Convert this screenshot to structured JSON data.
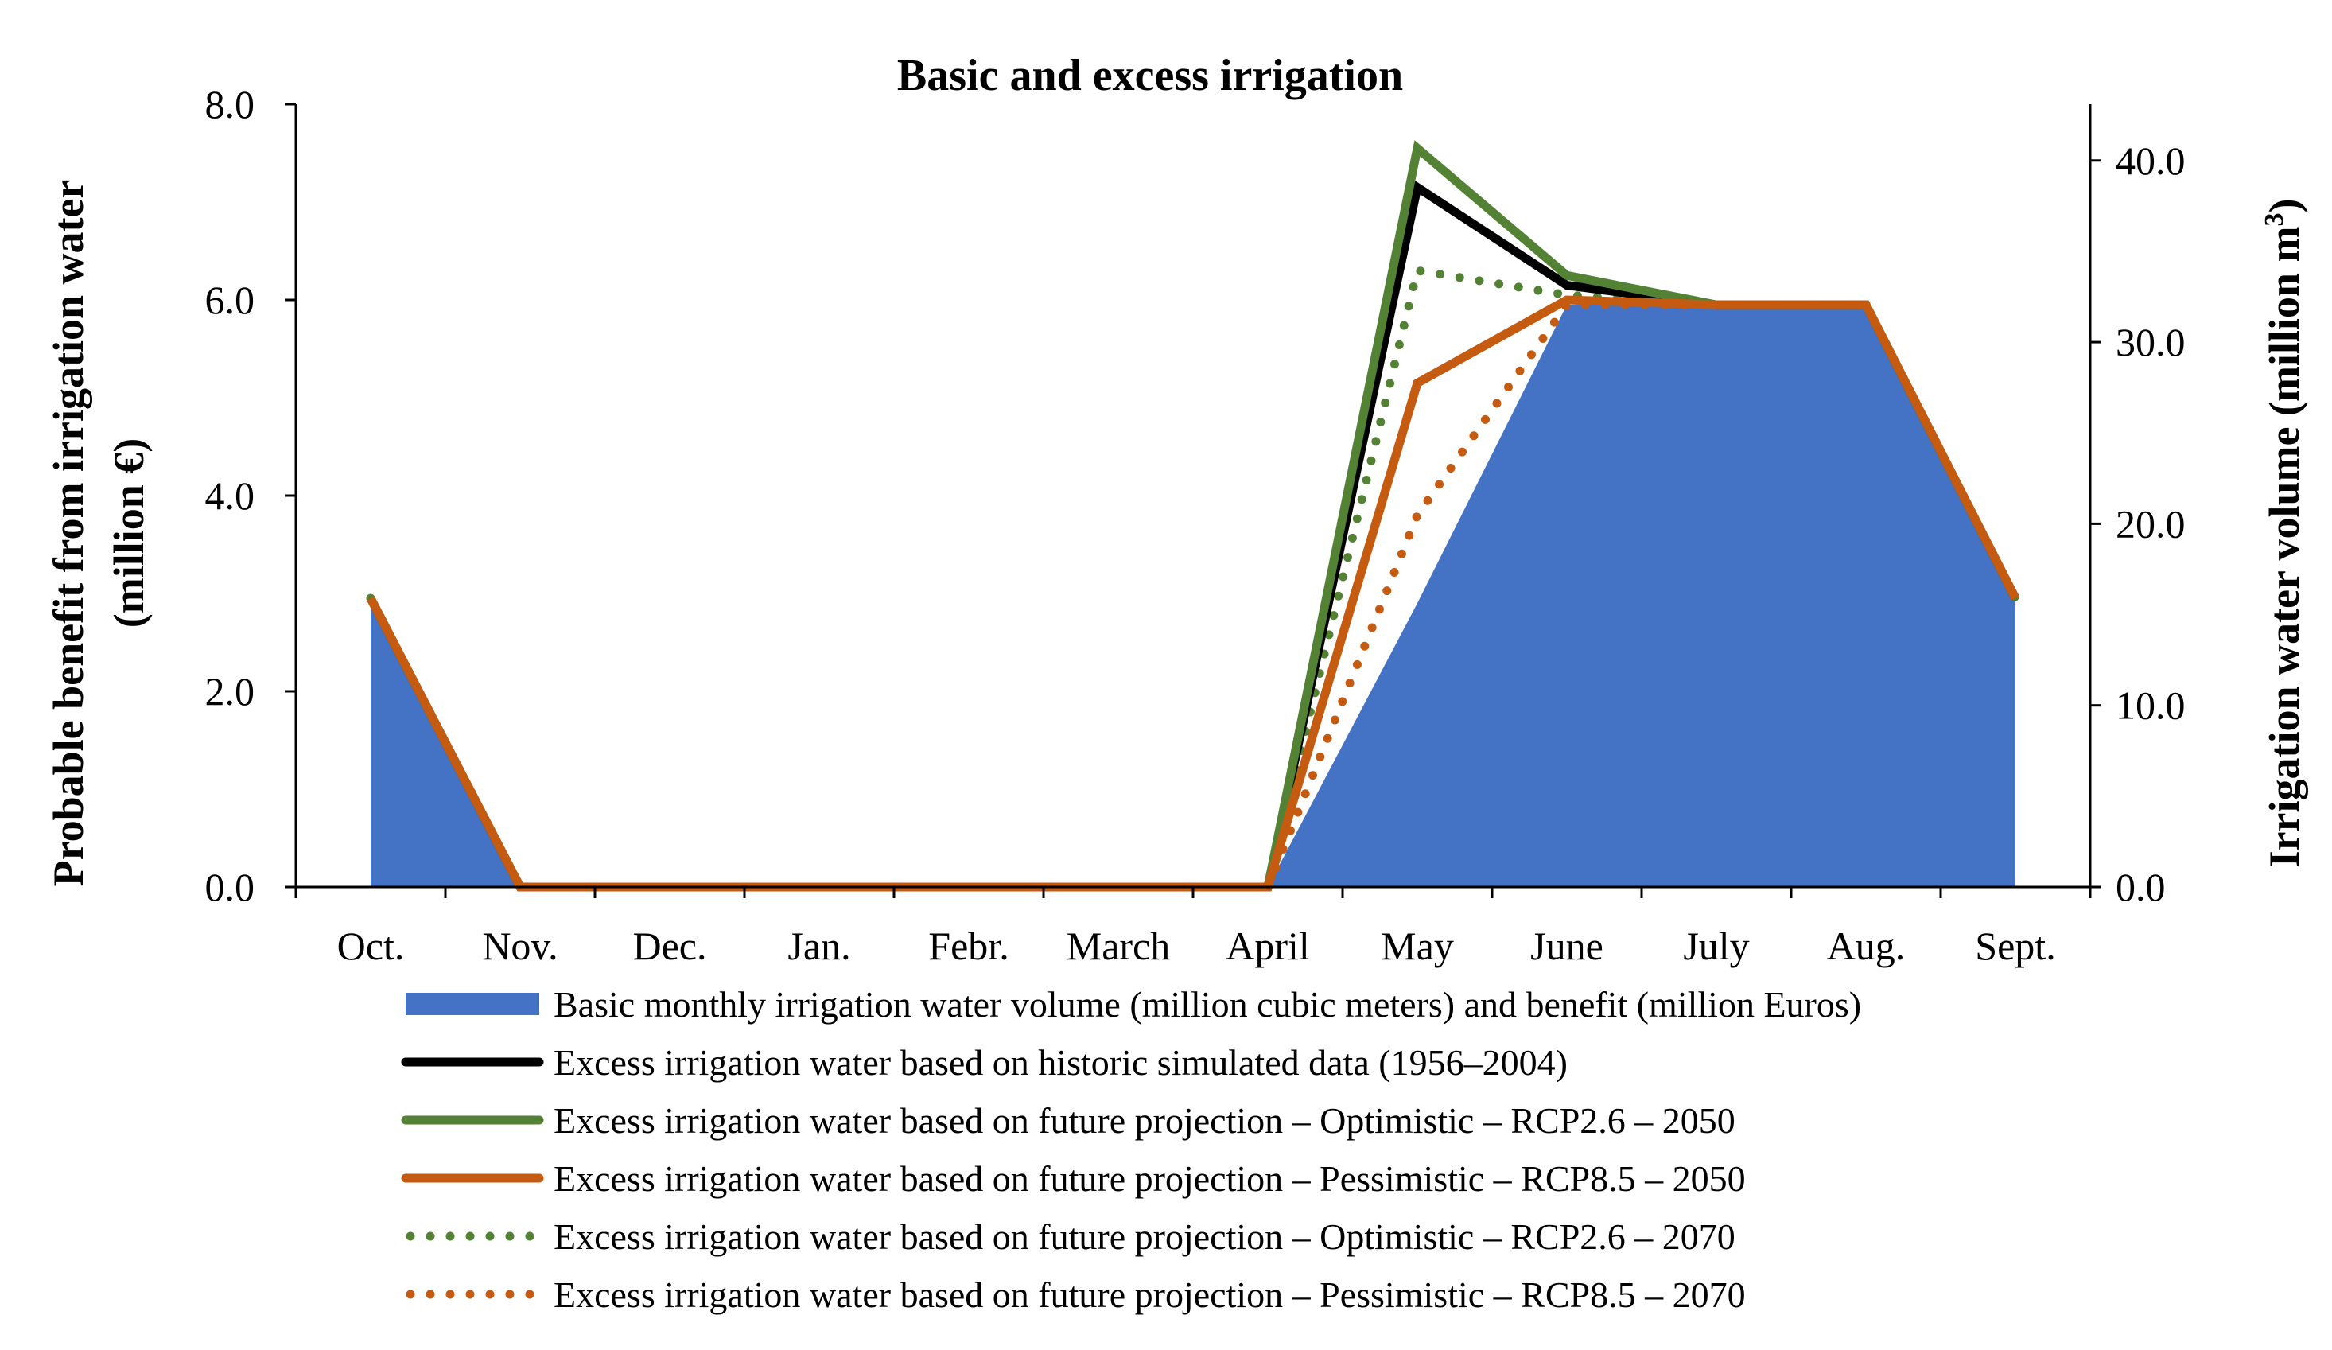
{
  "chart_data": {
    "type": "area+line",
    "title": "Basic and excess irrigation",
    "categories": [
      "Oct.",
      "Nov.",
      "Dec.",
      "Jan.",
      "Febr.",
      "March",
      "April",
      "May",
      "June",
      "July",
      "Aug.",
      "Sept."
    ],
    "y_left": {
      "label_line1": "Probable benefit from irrigation water",
      "label_line2": "(million €)",
      "range": [
        0,
        8
      ],
      "ticks": [
        "0.0",
        "2.0",
        "4.0",
        "6.0",
        "8.0"
      ],
      "tick_values": [
        0,
        2,
        4,
        6,
        8
      ]
    },
    "y_right": {
      "label_main": "Irrigation water volume (million m",
      "label_sup": "3",
      "label_close": ")",
      "range": [
        0,
        43.1
      ],
      "ticks": [
        "0.0",
        "10.0",
        "20.0",
        "30.0",
        "40.0"
      ],
      "tick_values": [
        0,
        10,
        20,
        30,
        40
      ]
    },
    "series": [
      {
        "name": "Basic monthly irrigation water volume (million cubic meters) and benefit (million Euros)",
        "kind": "area",
        "color": "#4472C4",
        "values": [
          2.95,
          0,
          0,
          0,
          0,
          0,
          0,
          2.9,
          5.95,
          5.95,
          5.95,
          2.95
        ]
      },
      {
        "name": "Excess irrigation water based on historic simulated data (1956–2004)",
        "kind": "line",
        "dash": "solid",
        "color": "#000000",
        "values": [
          2.95,
          0,
          0,
          0,
          0,
          0,
          0,
          7.15,
          6.15,
          5.95,
          5.95,
          2.95
        ]
      },
      {
        "name": "Excess irrigation water based on future projection – Optimistic – RCP2.6 – 2050",
        "kind": "line",
        "dash": "solid",
        "color": "#548235",
        "values": [
          2.95,
          0,
          0,
          0,
          0,
          0,
          0,
          7.55,
          6.25,
          5.95,
          5.95,
          2.95
        ]
      },
      {
        "name": "Excess irrigation water based on future projection – Pessimistic – RCP8.5 – 2050",
        "kind": "line",
        "dash": "solid",
        "color": "#C55A11",
        "values": [
          2.95,
          0,
          0,
          0,
          0,
          0,
          0,
          5.15,
          6.0,
          5.95,
          5.95,
          2.95
        ]
      },
      {
        "name": "Excess irrigation water based on future projection – Optimistic – RCP2.6 – 2070",
        "kind": "line",
        "dash": "dotted",
        "color": "#548235",
        "values": [
          2.95,
          0,
          0,
          0,
          0,
          0,
          0,
          6.3,
          6.05,
          5.95,
          5.95,
          2.95
        ]
      },
      {
        "name": "Excess irrigation water based on future projection – Pessimistic – RCP8.5 – 2070",
        "kind": "line",
        "dash": "dotted",
        "color": "#C55A11",
        "values": [
          2.95,
          0,
          0,
          0,
          0,
          0,
          0,
          3.8,
          5.95,
          5.95,
          5.95,
          2.95
        ]
      }
    ],
    "legend_position": "bottom"
  }
}
